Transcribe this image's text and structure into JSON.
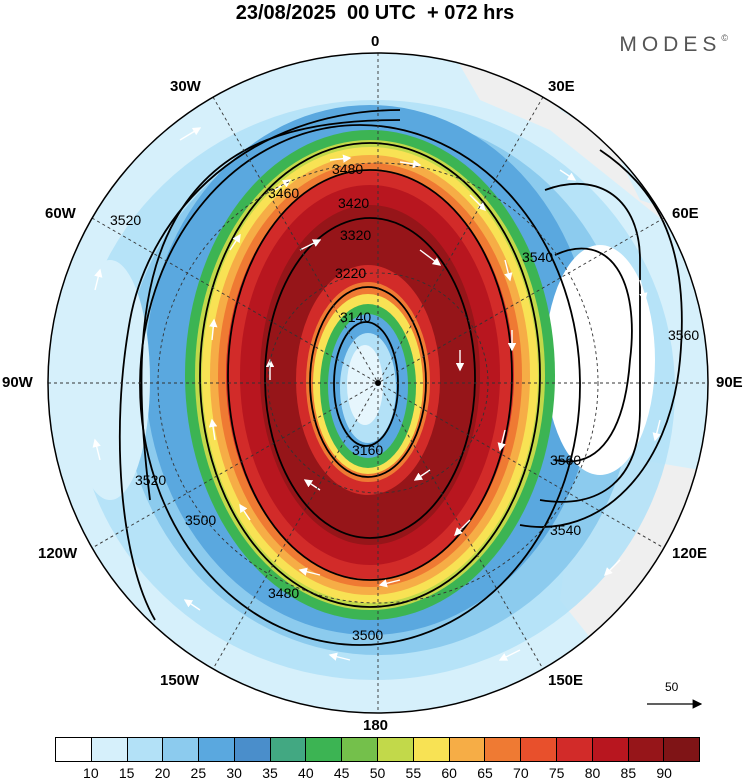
{
  "title": "23/08/2025  00 UTC  + 072 hrs",
  "brand": "MODES",
  "brand_mark": "©",
  "longitude_labels": {
    "top": "0",
    "n30w": "30W",
    "n30e": "30E",
    "w60": "60W",
    "e60": "60E",
    "w90": "90W",
    "e90": "90E",
    "w120": "120W",
    "e120": "120E",
    "w150": "150W",
    "e150": "150E",
    "bottom": "180"
  },
  "contour_labels": [
    "3480",
    "3460",
    "3420",
    "3320",
    "3220",
    "3140",
    "3160",
    "3500",
    "3520",
    "3540",
    "3560",
    "3520",
    "3500",
    "3480",
    "3540",
    "3560"
  ],
  "vector_reference": "50",
  "colorbar": {
    "ticks": [
      "10",
      "15",
      "20",
      "25",
      "30",
      "35",
      "40",
      "45",
      "50",
      "55",
      "60",
      "65",
      "70",
      "75",
      "80",
      "85",
      "90"
    ],
    "colors": [
      "#ffffff",
      "#d6f0fb",
      "#b3e1f7",
      "#8ccbee",
      "#5aa8df",
      "#4a8ecb",
      "#42a882",
      "#3cb453",
      "#74c04b",
      "#c2d94a",
      "#f8e254",
      "#f6ad46",
      "#ef7a33",
      "#e8502c",
      "#d22b29",
      "#b8161f",
      "#961519",
      "#7f1416"
    ]
  },
  "chart_data": {
    "type": "polar stereographic map",
    "projection": "south polar stereographic",
    "valid_time": "23/08/2025 00 UTC + 072 hrs",
    "fields": {
      "shaded": "wind speed",
      "shaded_levels": [
        10,
        15,
        20,
        25,
        30,
        35,
        40,
        45,
        50,
        55,
        60,
        65,
        70,
        75,
        80,
        85,
        90
      ],
      "contours": "geopotential height",
      "contour_values_labeled": [
        3140,
        3160,
        3220,
        3320,
        3420,
        3460,
        3480,
        3500,
        3520,
        3540,
        3560
      ],
      "vectors": "wind direction",
      "vector_reference_magnitude": 50
    },
    "longitudes_labeled": [
      "0",
      "30E",
      "60E",
      "90E",
      "120E",
      "150E",
      "180",
      "150W",
      "120W",
      "90W",
      "60W",
      "30W"
    ]
  }
}
